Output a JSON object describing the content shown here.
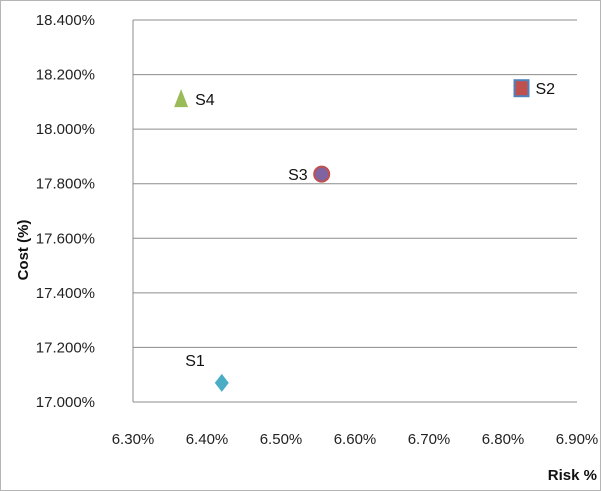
{
  "chart_data": {
    "type": "scatter",
    "title": "",
    "xlabel": "Risk %",
    "ylabel": "Cost (%)",
    "xlim": [
      6.3,
      6.9
    ],
    "ylim": [
      17.0,
      18.4
    ],
    "x_ticks": [
      6.3,
      6.4,
      6.5,
      6.6,
      6.7,
      6.8,
      6.9
    ],
    "x_tick_labels": [
      "6.30%",
      "6.40%",
      "6.50%",
      "6.60%",
      "6.70%",
      "6.80%",
      "6.90%"
    ],
    "y_ticks": [
      17.0,
      17.2,
      17.4,
      17.6,
      17.8,
      18.0,
      18.2,
      18.4
    ],
    "y_tick_labels": [
      "17.000%",
      "17.200%",
      "17.400%",
      "17.600%",
      "17.800%",
      "18.000%",
      "18.200%",
      "18.400%"
    ],
    "grid": "horizontal",
    "points": [
      {
        "label": "S1",
        "x": 6.42,
        "y": 17.07,
        "marker": "diamond",
        "color": "#4bacc6",
        "label_side": "upper-left"
      },
      {
        "label": "S2",
        "x": 6.825,
        "y": 18.15,
        "marker": "square",
        "color": "#c0504d",
        "edge": "#4f81bd",
        "label_side": "right"
      },
      {
        "label": "S3",
        "x": 6.555,
        "y": 17.835,
        "marker": "circle",
        "color": "#8064a2",
        "edge": "#c0504d",
        "label_side": "left"
      },
      {
        "label": "S4",
        "x": 6.365,
        "y": 18.11,
        "marker": "triangle",
        "color": "#9bbb59",
        "label_side": "right"
      }
    ]
  }
}
